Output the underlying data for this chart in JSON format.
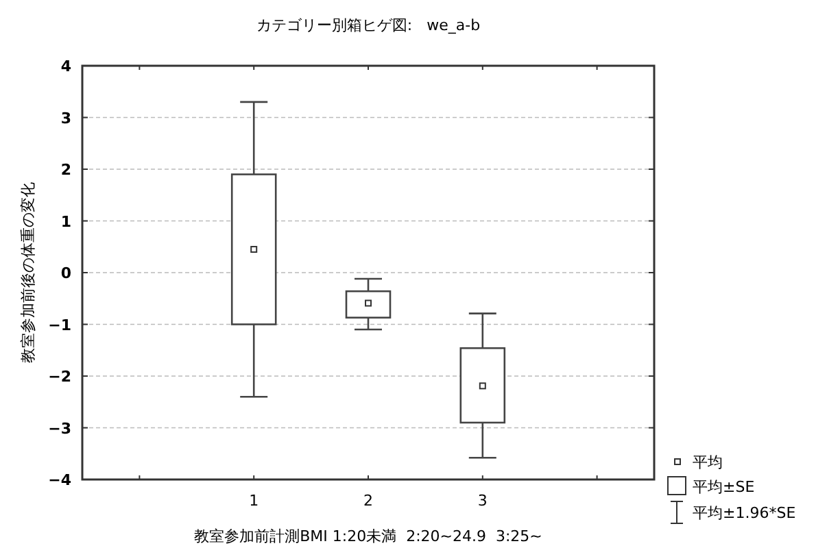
{
  "chart_data": {
    "type": "box",
    "title": "カテゴリー別箱ヒゲ図:   we_a-b",
    "xlabel": "教室参加前計測BMI 1:20未満  2:20~24.9  3:25~",
    "ylabel": "教室参加前後の体重の変化",
    "categories": [
      "1",
      "2",
      "3"
    ],
    "boxes": [
      {
        "low": -2.4,
        "q1": -1.0,
        "q3": 1.9,
        "high": 3.3,
        "mean": 0.45
      },
      {
        "low": -1.1,
        "q1": -0.87,
        "q3": -0.36,
        "high": -0.12,
        "mean": -0.59
      },
      {
        "low": -3.58,
        "q1": -2.9,
        "q3": -1.46,
        "high": -0.79,
        "mean": -2.19
      }
    ],
    "ylim": [
      -4,
      4
    ],
    "yticks": [
      -4,
      -3,
      -2,
      -1,
      0,
      1,
      2,
      3,
      4
    ],
    "grid": "y",
    "annotations": [
      "平均",
      "平均±SE",
      "平均±1.96*SE"
    ]
  }
}
